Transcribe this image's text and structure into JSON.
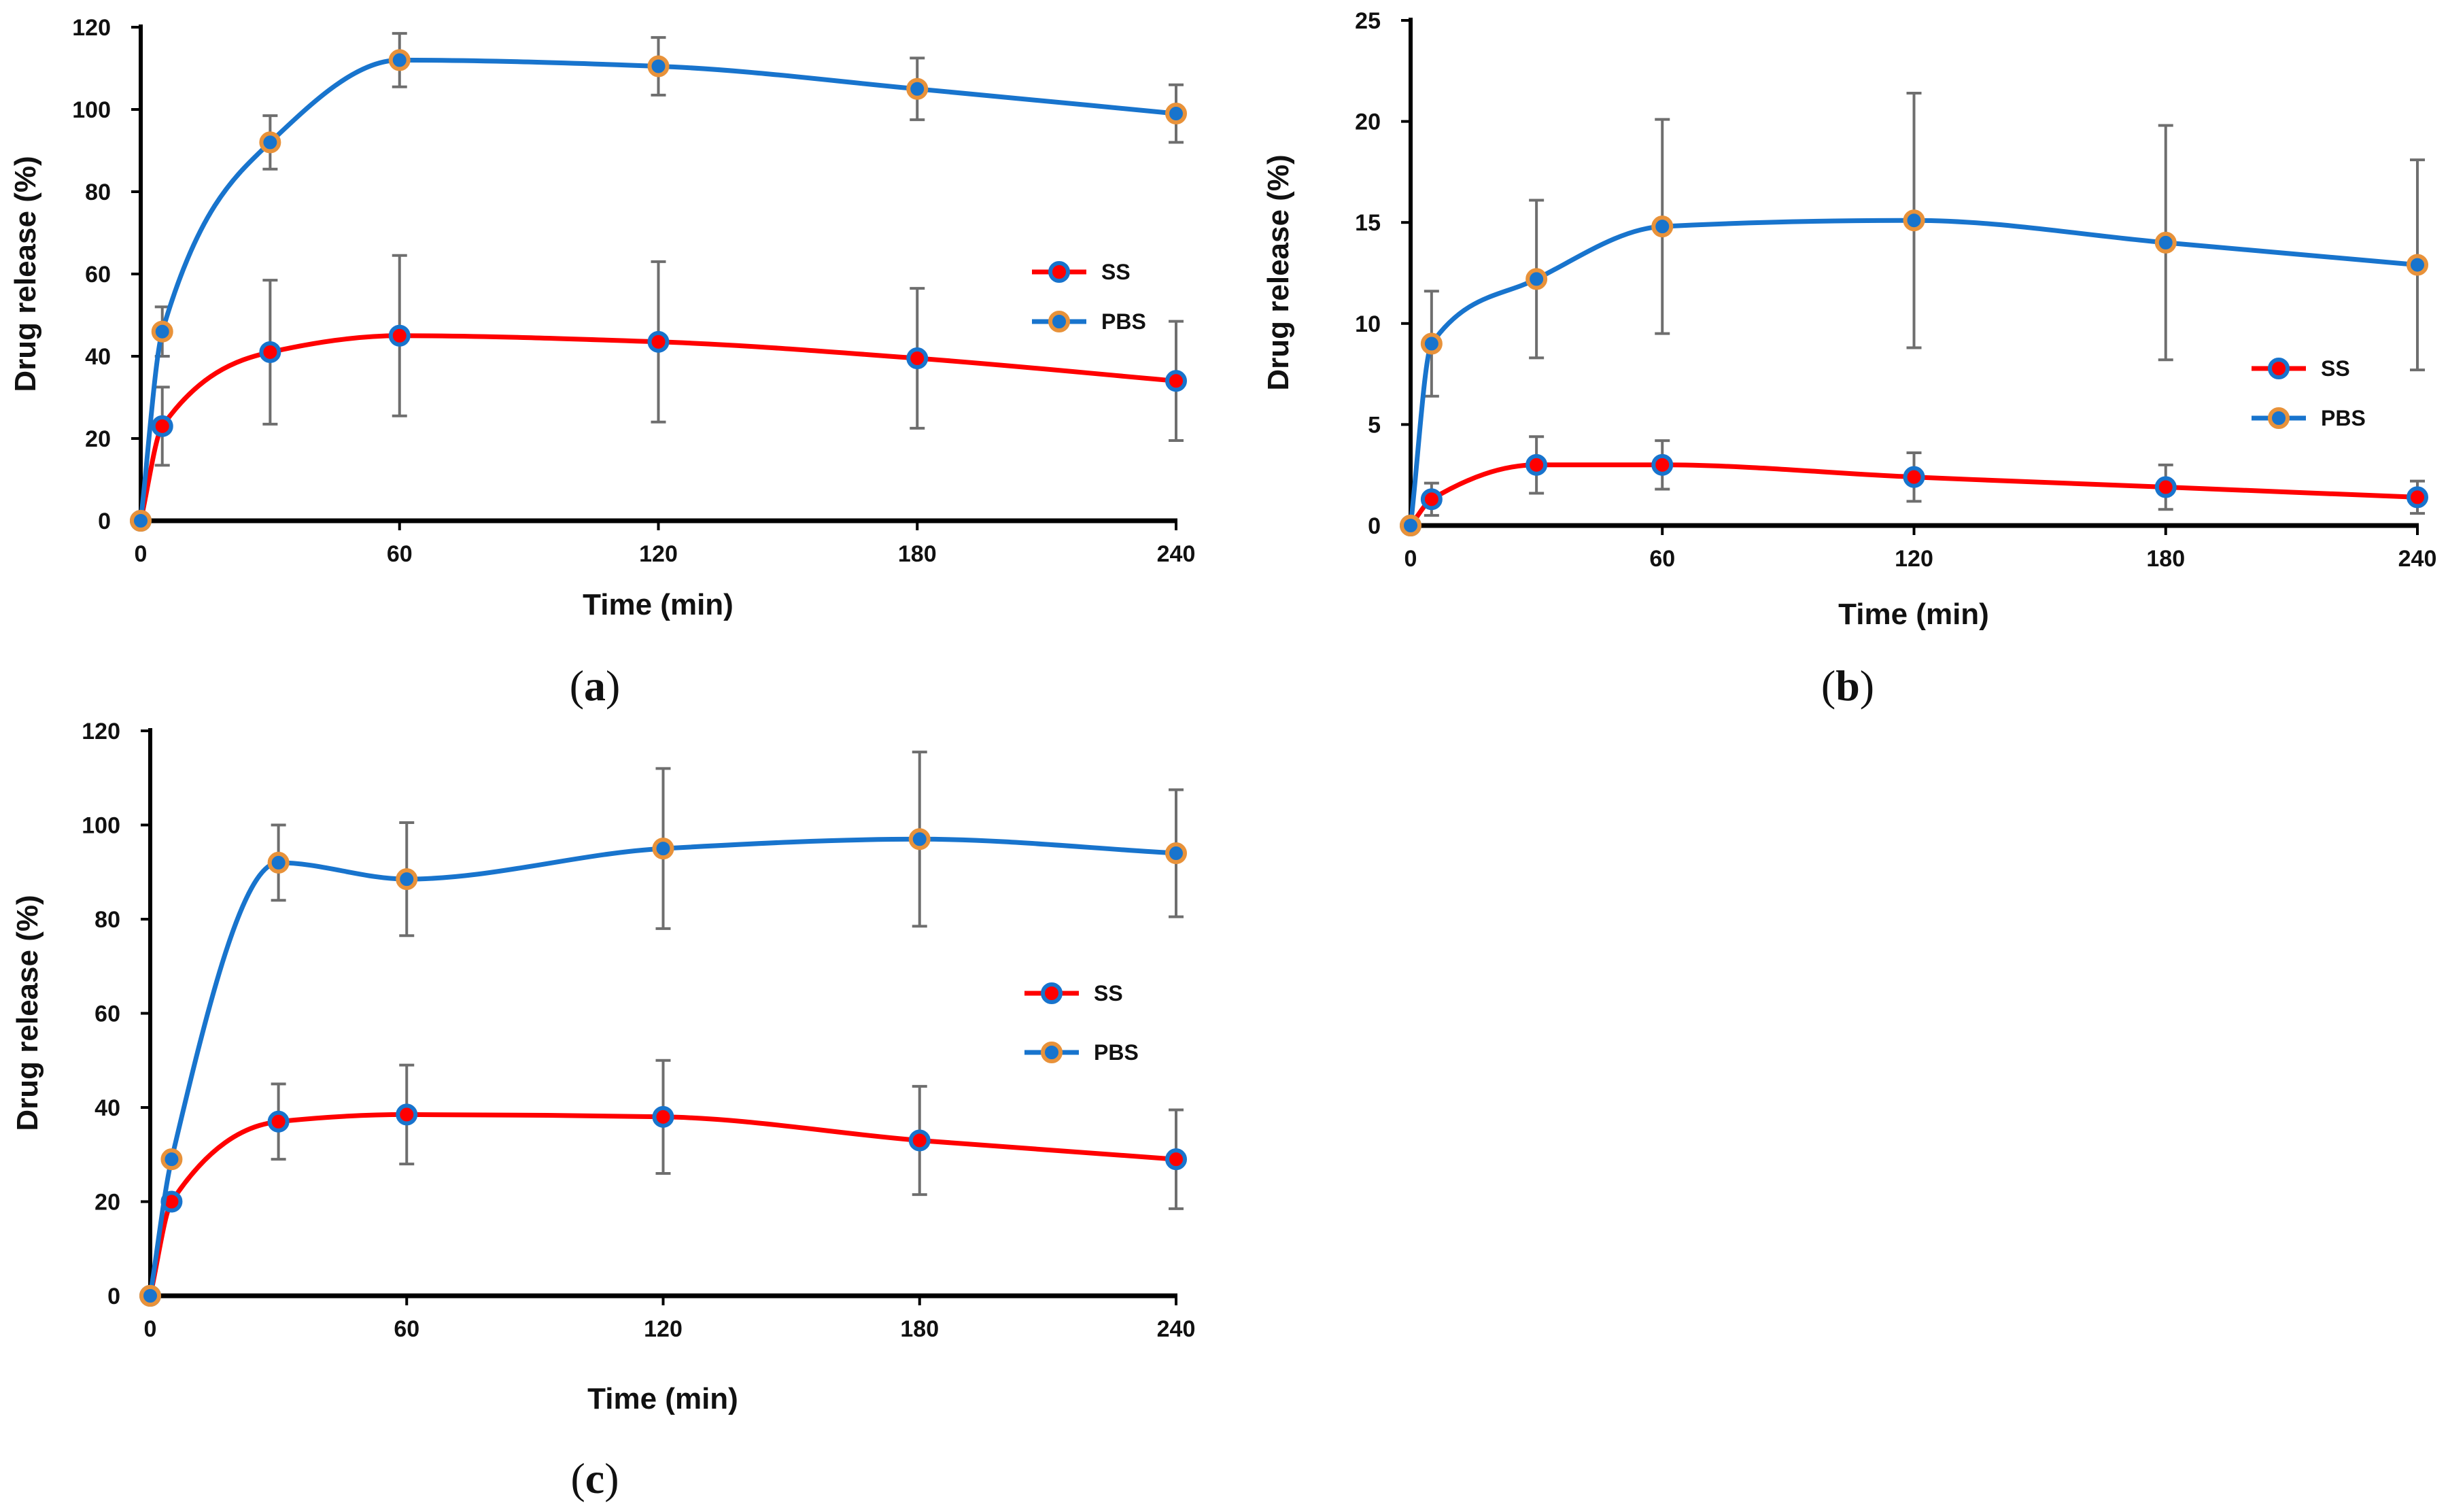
{
  "figure": {
    "colors": {
      "ss": "#ff0000",
      "pbs": "#1874cd",
      "marker_edge": "#e8923a",
      "errorbar": "#6e6e6e",
      "axis": "#000000"
    }
  },
  "chart_data": [
    {
      "id": "a",
      "type": "line",
      "panel_label": {
        "open": "(",
        "letter": "a",
        "close": ")"
      },
      "xlabel": "Time (min)",
      "ylabel": "Drug release (%)",
      "xlim": [
        0,
        240
      ],
      "ylim": [
        0,
        120
      ],
      "xticks": [
        0,
        60,
        120,
        180,
        240
      ],
      "yticks": [
        0,
        20,
        40,
        60,
        80,
        100,
        120
      ],
      "legend_position": "right",
      "series": [
        {
          "name": "SS",
          "color": "#ff0000",
          "x": [
            0,
            5,
            30,
            60,
            120,
            180,
            240
          ],
          "y": [
            0,
            23,
            41,
            45,
            43.5,
            39.5,
            34
          ],
          "err": [
            0,
            9.5,
            17.5,
            19.5,
            19.5,
            17,
            14.5
          ]
        },
        {
          "name": "PBS",
          "color": "#1874cd",
          "x": [
            0,
            5,
            30,
            60,
            120,
            180,
            240
          ],
          "y": [
            0,
            46,
            92,
            112,
            110.5,
            105,
            99
          ],
          "err": [
            0,
            6,
            6.5,
            6.5,
            7,
            7.5,
            7
          ]
        }
      ]
    },
    {
      "id": "b",
      "type": "line",
      "panel_label": {
        "open": "(",
        "letter": "b",
        "close": ")"
      },
      "xlabel": "Time (min)",
      "ylabel": "Drug release (%)",
      "xlim": [
        0,
        240
      ],
      "ylim": [
        0,
        25
      ],
      "xticks": [
        0,
        60,
        120,
        180,
        240
      ],
      "yticks": [
        0,
        5,
        10,
        15,
        20,
        25
      ],
      "legend_position": "lower-right",
      "series": [
        {
          "name": "SS",
          "color": "#ff0000",
          "x": [
            0,
            5,
            30,
            60,
            120,
            180,
            240
          ],
          "y": [
            0,
            1.3,
            3.0,
            3.0,
            2.4,
            1.9,
            1.4
          ],
          "err": [
            0,
            0.8,
            1.4,
            1.2,
            1.2,
            1.1,
            0.8
          ]
        },
        {
          "name": "PBS",
          "color": "#1874cd",
          "x": [
            0,
            5,
            30,
            60,
            120,
            180,
            240
          ],
          "y": [
            0,
            9.0,
            12.2,
            14.8,
            15.1,
            14.0,
            12.9
          ],
          "err": [
            0,
            2.6,
            3.9,
            5.3,
            6.3,
            5.8,
            5.2
          ]
        }
      ]
    },
    {
      "id": "c",
      "type": "line",
      "panel_label": {
        "open": "(",
        "letter": "c",
        "close": ")"
      },
      "xlabel": "Time (min)",
      "ylabel": "Drug release (%)",
      "xlim": [
        0,
        240
      ],
      "ylim": [
        0,
        120
      ],
      "xticks": [
        0,
        60,
        120,
        180,
        240
      ],
      "yticks": [
        0,
        20,
        40,
        60,
        80,
        100,
        120
      ],
      "legend_position": "right",
      "series": [
        {
          "name": "SS",
          "color": "#ff0000",
          "x": [
            0,
            5,
            30,
            60,
            120,
            180,
            240
          ],
          "y": [
            0,
            20,
            37,
            38.5,
            38,
            33,
            29
          ],
          "err": [
            0,
            0,
            8,
            10.5,
            12,
            11.5,
            10.5
          ]
        },
        {
          "name": "PBS",
          "color": "#1874cd",
          "x": [
            0,
            5,
            30,
            60,
            120,
            180,
            240
          ],
          "y": [
            0,
            29,
            92,
            88.5,
            95,
            97,
            94
          ],
          "err": [
            0,
            0,
            8,
            12,
            17,
            18.5,
            13.5
          ]
        }
      ]
    }
  ]
}
